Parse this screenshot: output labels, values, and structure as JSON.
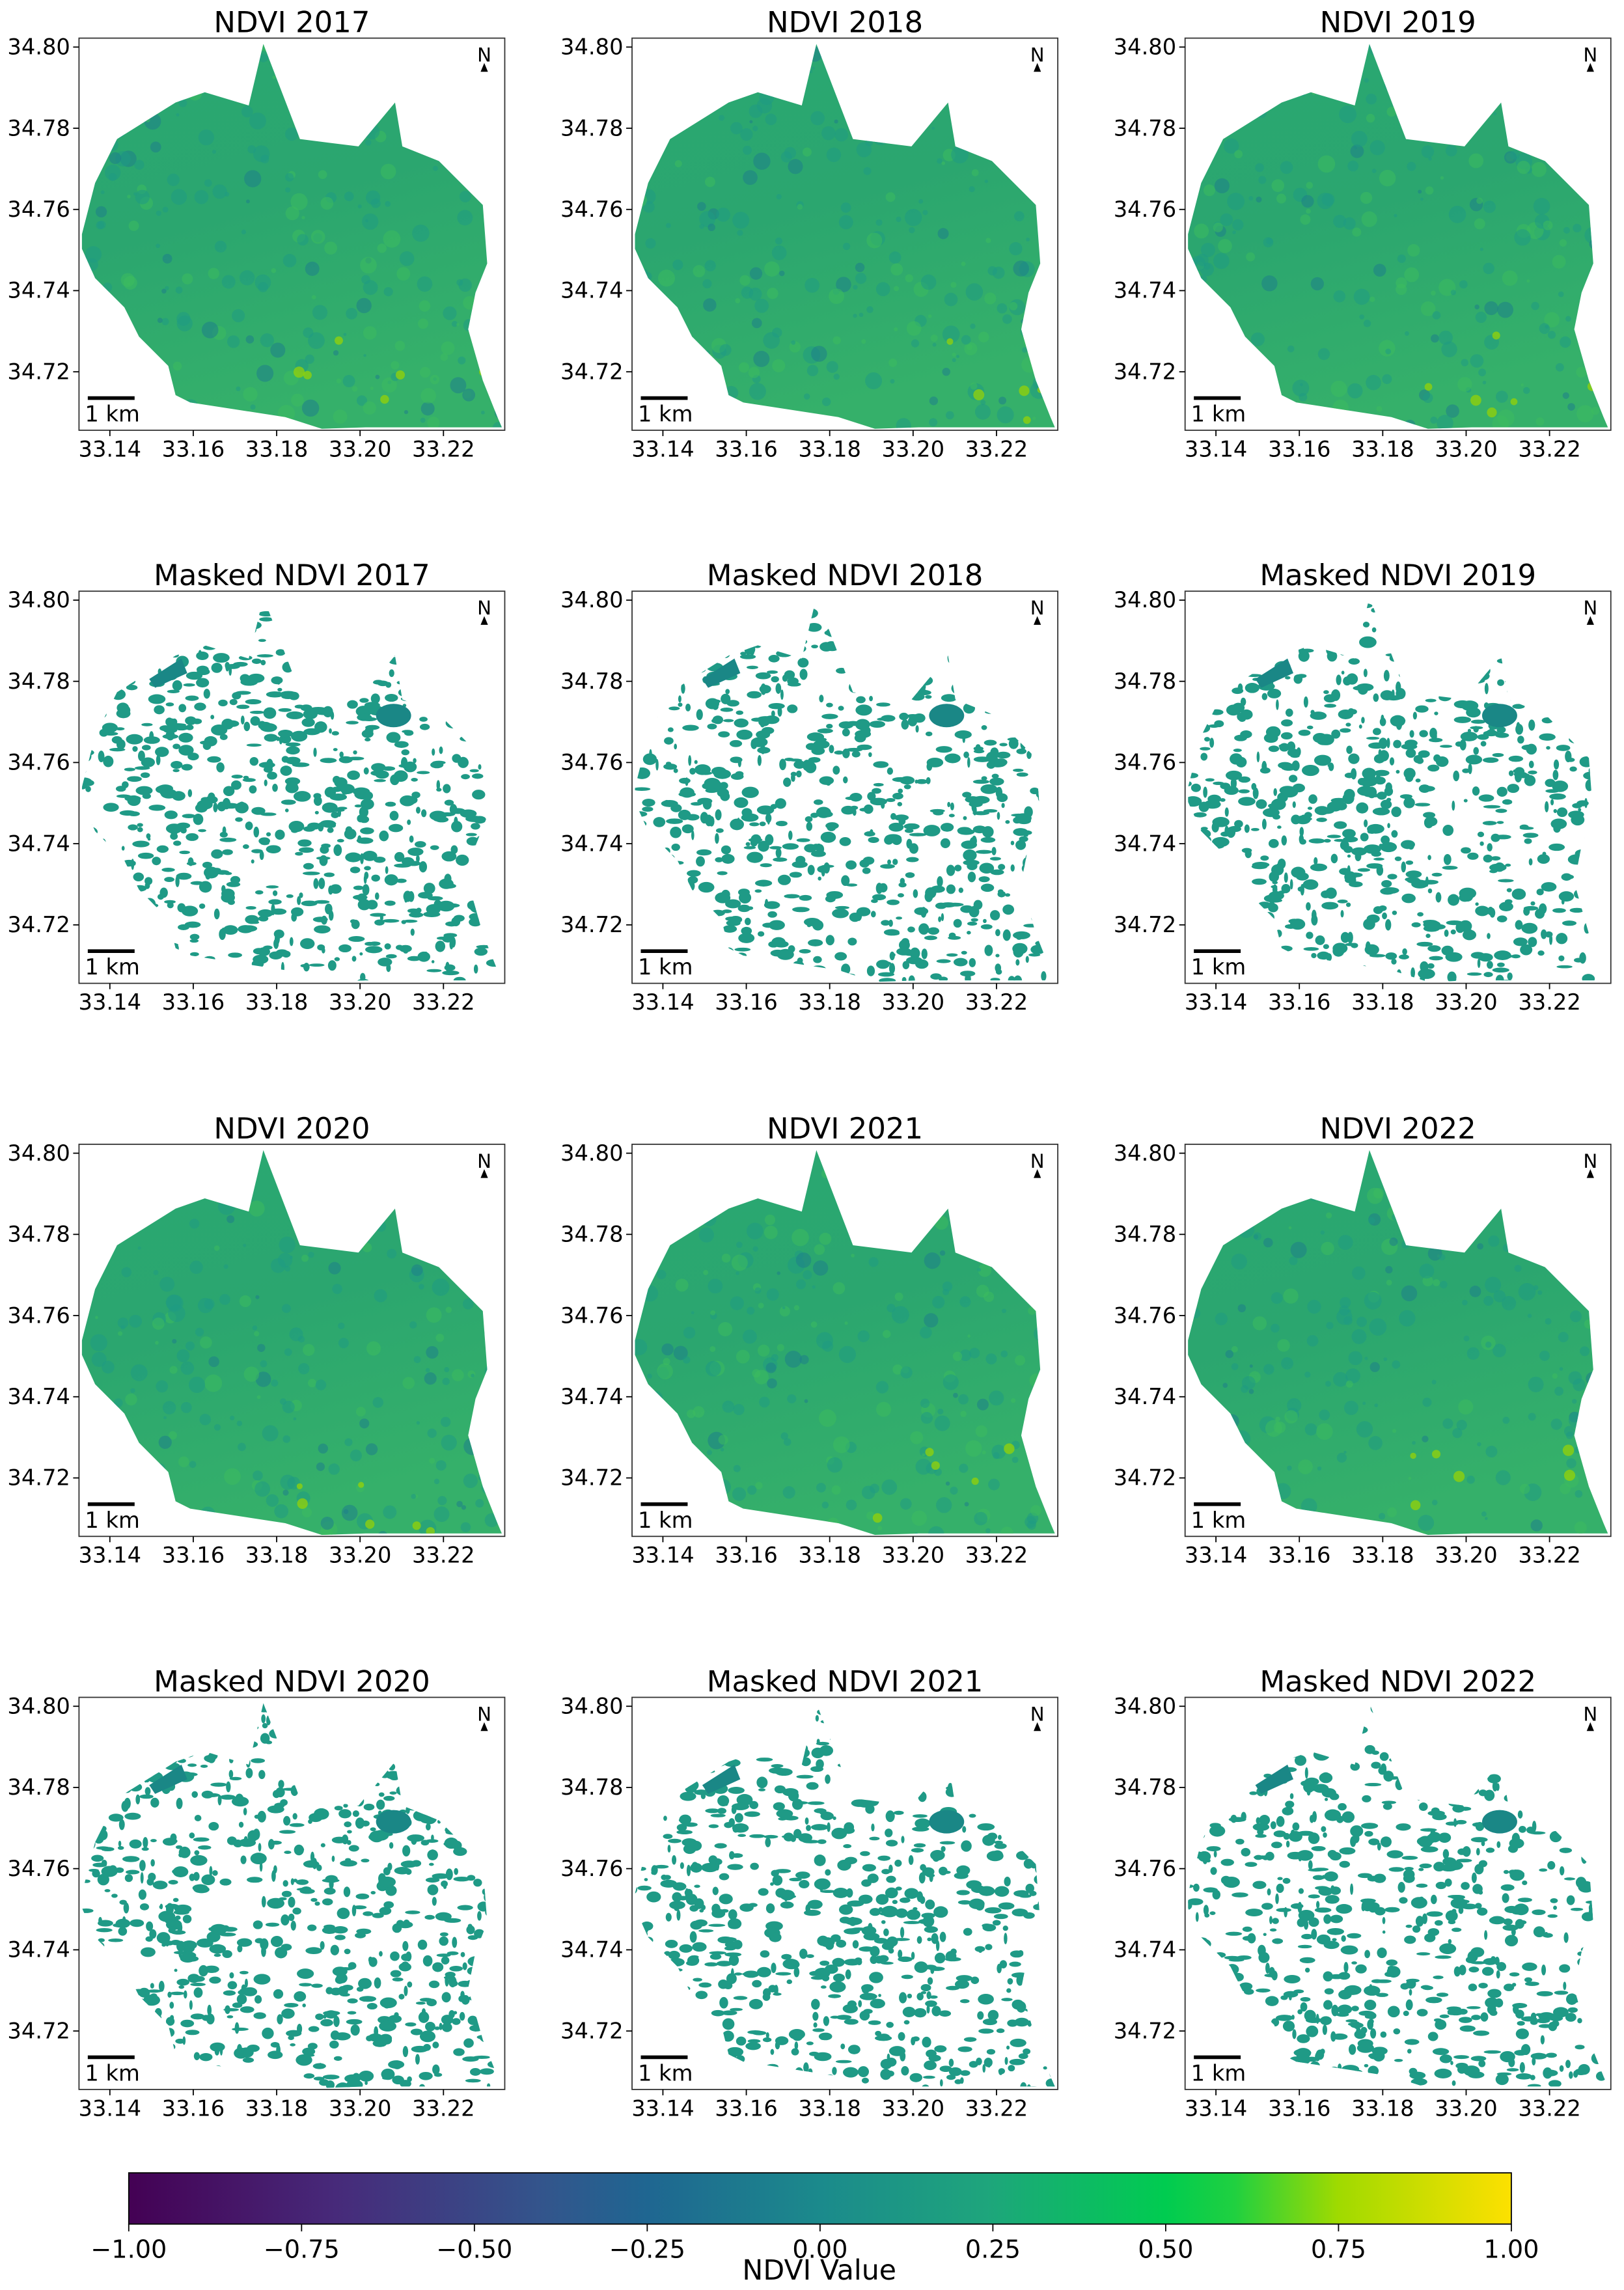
{
  "panels": [
    {
      "title": "NDVI 2017",
      "masked": false
    },
    {
      "title": "NDVI 2018",
      "masked": false
    },
    {
      "title": "NDVI 2019",
      "masked": false
    },
    {
      "title": "Masked NDVI 2017",
      "masked": true
    },
    {
      "title": "Masked NDVI 2018",
      "masked": true
    },
    {
      "title": "Masked NDVI 2019",
      "masked": true
    },
    {
      "title": "NDVI 2020",
      "masked": false
    },
    {
      "title": "NDVI 2021",
      "masked": false
    },
    {
      "title": "NDVI 2022",
      "masked": false
    },
    {
      "title": "Masked NDVI 2020",
      "masked": true
    },
    {
      "title": "Masked NDVI 2021",
      "masked": true
    },
    {
      "title": "Masked NDVI 2022",
      "masked": true
    }
  ],
  "xlim": [
    33.1326,
    33.2347
  ],
  "ylim": [
    34.7056,
    34.8022
  ],
  "xticks": [
    33.14,
    33.16,
    33.18,
    {
      "value": 33.2,
      "label": "33.20"
    },
    33.22
  ],
  "yticks": [
    {
      "value": 34.72,
      "label": "34.72"
    },
    34.74,
    34.76,
    34.78,
    {
      "value": 34.8,
      "label": "34.80"
    }
  ],
  "scale_label": "1 km",
  "north": "N",
  "colorbar": {
    "label": "NDVI Value",
    "clim": [
      -1,
      1
    ],
    "ticks": [
      {
        "value": -1,
        "label": "−1.00"
      },
      {
        "value": -0.75,
        "label": "−0.75"
      },
      {
        "value": -0.5,
        "label": "−0.50"
      },
      {
        "value": -0.25,
        "label": "−0.25"
      },
      {
        "value": 0,
        "label": "0.00"
      },
      {
        "value": 0.25,
        "label": "0.25"
      },
      {
        "value": 0.5,
        "label": "0.50"
      },
      {
        "value": 0.75,
        "label": "0.75"
      },
      {
        "value": 1,
        "label": "1.00"
      }
    ]
  }
}
